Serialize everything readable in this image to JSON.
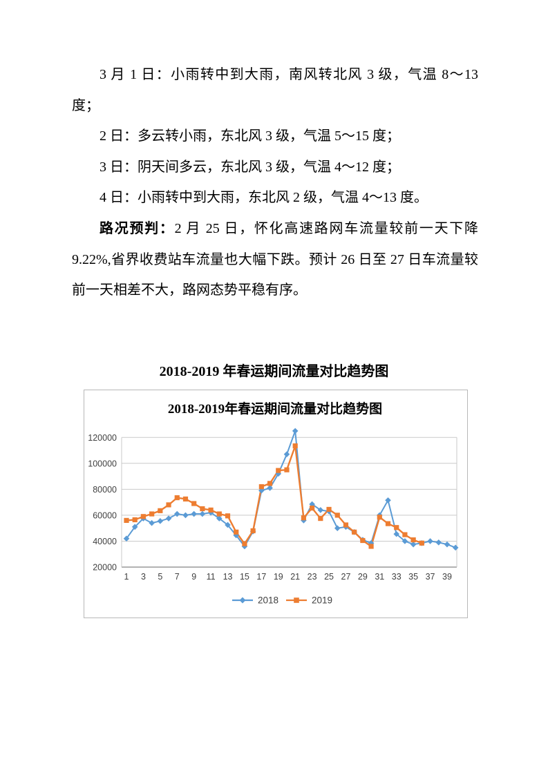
{
  "document": {
    "paragraphs": [
      {
        "lead": "",
        "text": "3 月 1 日：小雨转中到大雨，南风转北风 3 级，气温 8～13 度；"
      },
      {
        "lead": "",
        "text": "2 日：多云转小雨，东北风 3 级，气温 5～15 度；"
      },
      {
        "lead": "",
        "text": "3 日：阴天间多云，东北风 3 级，气温 4～12 度；"
      },
      {
        "lead": "",
        "text": "4 日：小雨转中到大雨，东北风 2 级，气温 4～13 度。"
      },
      {
        "lead": "路况预判：",
        "text": "2 月 25 日，怀化高速路网车流量较前一天下降 9.22%,省界收费站车流量也大幅下跌。预计 26 日至 27 日车流量较前一天相差不大，路网态势平稳有序。"
      }
    ],
    "chart_caption": "2018-2019 年春运期间流量对比趋势图"
  },
  "chart_data": {
    "type": "line",
    "title": "2018-2019年春运期间流量对比趋势图",
    "xlabel": "",
    "ylabel": "",
    "x_range": [
      1,
      40
    ],
    "xticks": [
      1,
      3,
      5,
      7,
      9,
      11,
      13,
      15,
      17,
      19,
      21,
      23,
      25,
      27,
      29,
      31,
      33,
      35,
      37,
      39
    ],
    "ylim": [
      20000,
      120000
    ],
    "yticks": [
      20000,
      40000,
      60000,
      80000,
      100000,
      120000
    ],
    "grid": true,
    "legend_position": "bottom",
    "colors": {
      "blue_2018": "#5B9BD5",
      "orange_2019": "#ED7D31",
      "gridline": "#C9C9C9",
      "axis_line": "#999999"
    },
    "series": [
      {
        "name": "2018",
        "color": "#5B9BD5",
        "marker": "diamond",
        "values": [
          42000,
          51000,
          57500,
          54000,
          55500,
          57500,
          61000,
          60000,
          61000,
          61000,
          62000,
          57500,
          52500,
          44500,
          36000,
          47500,
          79000,
          81000,
          92000,
          107000,
          125000,
          56000,
          68500,
          64000,
          63000,
          50000,
          51000,
          47000,
          41000,
          38500,
          60000,
          71500,
          45500,
          40000,
          37500,
          38500,
          40000,
          39000,
          37500,
          35000
        ]
      },
      {
        "name": "2019",
        "color": "#ED7D31",
        "marker": "square",
        "values": [
          56000,
          56500,
          59000,
          61000,
          63500,
          68000,
          73500,
          72500,
          69000,
          65000,
          64000,
          61000,
          59500,
          47000,
          38000,
          48000,
          82000,
          84500,
          94500,
          95000,
          113500,
          58000,
          65500,
          57500,
          64500,
          60000,
          52500,
          47000,
          40500,
          36000,
          58500,
          53500,
          50500,
          45000,
          41000,
          38500
        ]
      }
    ]
  }
}
